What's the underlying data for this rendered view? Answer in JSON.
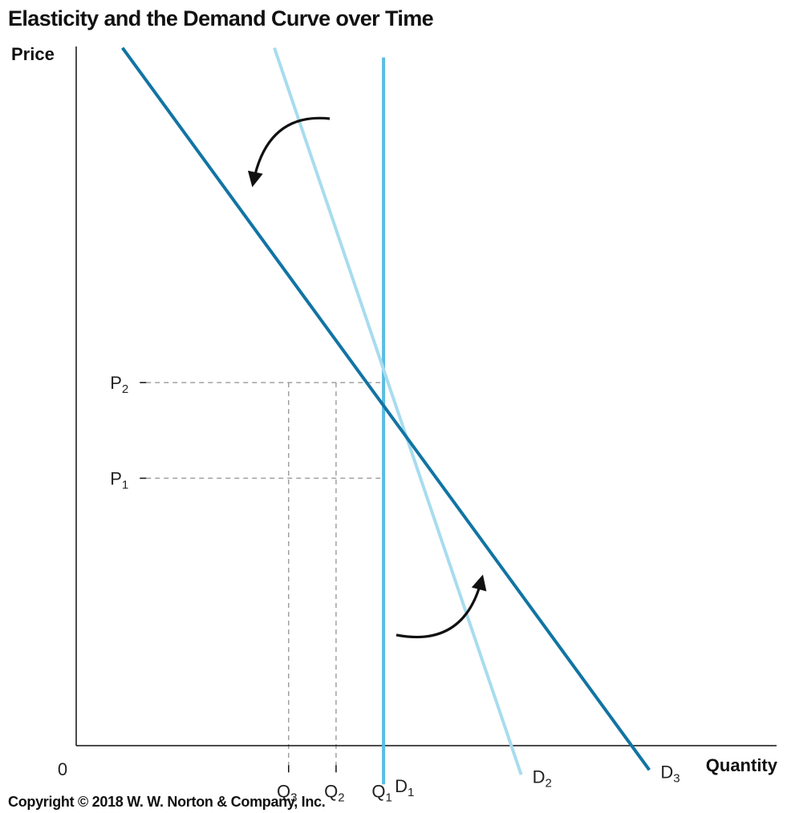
{
  "chart_data": {
    "type": "line",
    "title": "Elasticity and the Demand Curve over Time",
    "xlabel": "Quantity",
    "ylabel": "Price",
    "origin_label": "0",
    "copyright": "Copyright © 2018 W. W. Norton & Company, Inc.",
    "x_ticks": [
      {
        "main": "Q",
        "sub": "3",
        "value": 3
      },
      {
        "main": "Q",
        "sub": "2",
        "value": 4
      },
      {
        "main": "Q",
        "sub": "1",
        "value": 5
      }
    ],
    "y_ticks": [
      {
        "main": "P",
        "sub": "2",
        "value": 4
      },
      {
        "main": "P",
        "sub": "1",
        "value": 3
      }
    ],
    "series": [
      {
        "name": "D",
        "sub": "1",
        "color": "#5bbde2",
        "points": [
          [
            5,
            7.4
          ],
          [
            5,
            -0.2
          ]
        ]
      },
      {
        "name": "D",
        "sub": "2",
        "color": "#a8dcef",
        "points": [
          [
            2.7,
            7.5
          ],
          [
            7.9,
            -0.1
          ]
        ]
      },
      {
        "name": "D",
        "sub": "3",
        "color": "#1174a3",
        "points": [
          [
            -0.5,
            7.5
          ],
          [
            10.6,
            -0.05
          ]
        ]
      }
    ],
    "arrows": [
      {
        "direction": "counterclockwise",
        "position": "upper-left"
      },
      {
        "direction": "counterclockwise",
        "position": "lower-right"
      }
    ],
    "guide_lines": "dashed",
    "xlim": [
      -3.08,
      13.5
    ],
    "ylim": [
      -0.5,
      8.0
    ]
  }
}
